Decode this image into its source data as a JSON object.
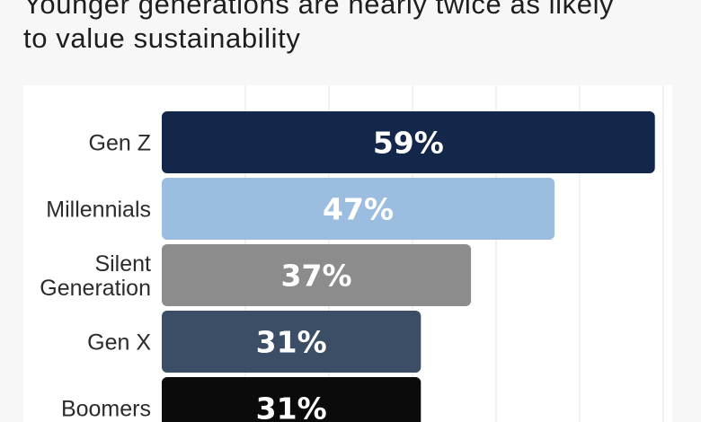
{
  "headline": {
    "line1": "Younger generations are nearly twice as likely",
    "line2": "to value sustainability"
  },
  "chart_data": {
    "type": "bar",
    "orientation": "horizontal",
    "categories": [
      [
        "Gen Z"
      ],
      [
        "Millennials"
      ],
      [
        "Silent",
        "Generation"
      ],
      [
        "Gen X"
      ],
      [
        "Boomers"
      ]
    ],
    "values": [
      59,
      47,
      37,
      31,
      31
    ],
    "data_labels": [
      "59%",
      "47%",
      "37%",
      "31%",
      "31%"
    ],
    "colors": [
      "#13274a",
      "#9bbde0",
      "#8c8c8c",
      "#3b4e66",
      "#0b0b0b"
    ],
    "xlim": [
      0,
      60
    ],
    "grid": true
  }
}
